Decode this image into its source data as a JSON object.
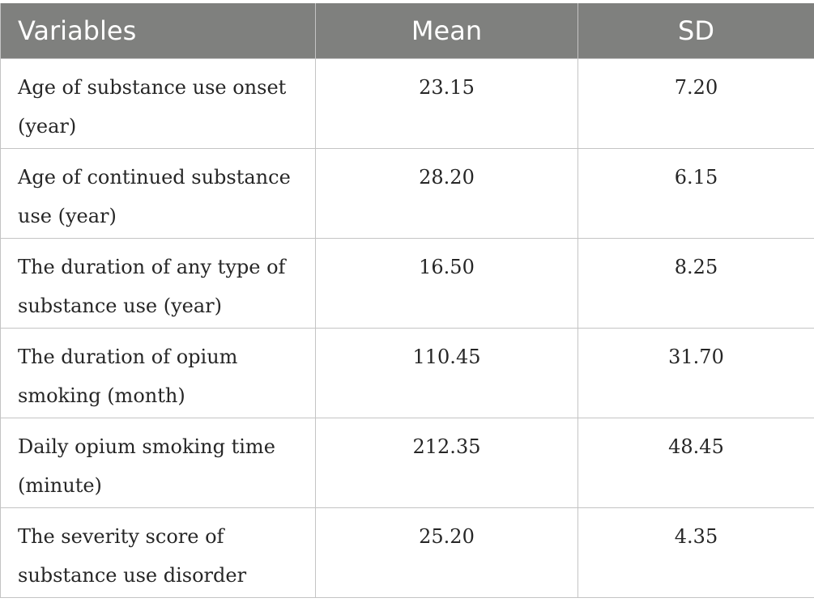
{
  "table": {
    "headers": {
      "variables": "Variables",
      "mean": "Mean",
      "sd": "SD"
    },
    "rows": [
      {
        "variable": "Age of substance use onset (year)",
        "mean": "23.15",
        "sd": "7.20"
      },
      {
        "variable": "Age of continued substance use (year)",
        "mean": "28.20",
        "sd": "6.15"
      },
      {
        "variable": "The duration of any type of substance use (year)",
        "mean": "16.50",
        "sd": "8.25"
      },
      {
        "variable": "The duration of opium smoking (month)",
        "mean": "110.45",
        "sd": "31.70"
      },
      {
        "variable": "Daily opium smoking time (minute)",
        "mean": "212.35",
        "sd": "48.45"
      },
      {
        "variable": "The severity score of substance use disorder",
        "mean": "25.20",
        "sd": "4.35"
      }
    ]
  }
}
